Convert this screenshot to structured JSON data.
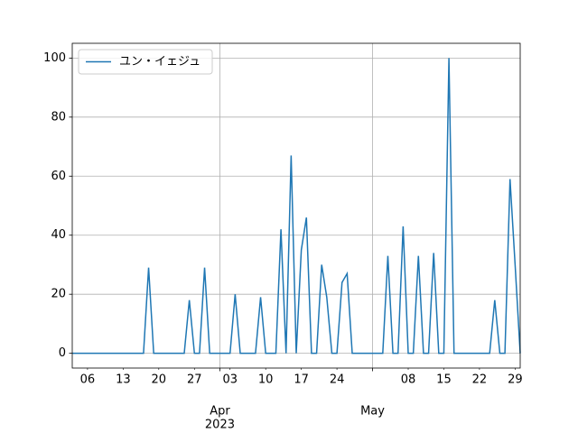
{
  "chart_data": {
    "type": "line",
    "x": [
      "2023-03-03",
      "2023-03-04",
      "2023-03-05",
      "2023-03-06",
      "2023-03-07",
      "2023-03-08",
      "2023-03-09",
      "2023-03-10",
      "2023-03-11",
      "2023-03-12",
      "2023-03-13",
      "2023-03-14",
      "2023-03-15",
      "2023-03-16",
      "2023-03-17",
      "2023-03-18",
      "2023-03-19",
      "2023-03-20",
      "2023-03-21",
      "2023-03-22",
      "2023-03-23",
      "2023-03-24",
      "2023-03-25",
      "2023-03-26",
      "2023-03-27",
      "2023-03-28",
      "2023-03-29",
      "2023-03-30",
      "2023-03-31",
      "2023-04-01",
      "2023-04-02",
      "2023-04-03",
      "2023-04-04",
      "2023-04-05",
      "2023-04-06",
      "2023-04-07",
      "2023-04-08",
      "2023-04-09",
      "2023-04-10",
      "2023-04-11",
      "2023-04-12",
      "2023-04-13",
      "2023-04-14",
      "2023-04-15",
      "2023-04-16",
      "2023-04-17",
      "2023-04-18",
      "2023-04-19",
      "2023-04-20",
      "2023-04-21",
      "2023-04-22",
      "2023-04-23",
      "2023-04-24",
      "2023-04-25",
      "2023-04-26",
      "2023-04-27",
      "2023-04-28",
      "2023-04-29",
      "2023-04-30",
      "2023-05-01",
      "2023-05-02",
      "2023-05-03",
      "2023-05-04",
      "2023-05-05",
      "2023-05-06",
      "2023-05-07",
      "2023-05-08",
      "2023-05-09",
      "2023-05-10",
      "2023-05-11",
      "2023-05-12",
      "2023-05-13",
      "2023-05-14",
      "2023-05-15",
      "2023-05-16",
      "2023-05-17",
      "2023-05-18",
      "2023-05-19",
      "2023-05-20",
      "2023-05-21",
      "2023-05-22",
      "2023-05-23",
      "2023-05-24",
      "2023-05-25",
      "2023-05-26",
      "2023-05-27",
      "2023-05-28",
      "2023-05-29",
      "2023-05-30"
    ],
    "series": [
      {
        "name": "ユン・イェジュ",
        "color": "#1f77b4",
        "values": [
          0,
          0,
          0,
          0,
          0,
          0,
          0,
          0,
          0,
          0,
          0,
          0,
          0,
          0,
          0,
          29,
          0,
          0,
          0,
          0,
          0,
          0,
          0,
          18,
          0,
          0,
          29,
          0,
          0,
          0,
          0,
          0,
          20,
          0,
          0,
          0,
          0,
          19,
          0,
          0,
          0,
          42,
          0,
          67,
          0,
          35,
          46,
          0,
          0,
          30,
          19,
          0,
          0,
          24,
          27,
          0,
          0,
          0,
          0,
          0,
          0,
          0,
          33,
          0,
          0,
          43,
          0,
          0,
          33,
          0,
          0,
          34,
          0,
          0,
          100,
          0,
          0,
          0,
          0,
          0,
          0,
          0,
          0,
          18,
          0,
          0,
          59,
          30,
          0
        ]
      }
    ],
    "xlim": [
      "2023-03-03",
      "2023-05-30"
    ],
    "xticks": [
      {
        "value": "2023-04-01",
        "label": "Apr"
      },
      {
        "value": "2023-05-01",
        "label": "May"
      }
    ],
    "x_year_label": "2023",
    "xticks_minor": [
      {
        "value": "2023-03-06",
        "label": "06"
      },
      {
        "value": "2023-03-13",
        "label": "13"
      },
      {
        "value": "2023-03-20",
        "label": "20"
      },
      {
        "value": "2023-03-27",
        "label": "27"
      },
      {
        "value": "2023-04-03",
        "label": "03"
      },
      {
        "value": "2023-04-10",
        "label": "10"
      },
      {
        "value": "2023-04-17",
        "label": "17"
      },
      {
        "value": "2023-04-24",
        "label": "24"
      },
      {
        "value": "2023-05-08",
        "label": "08"
      },
      {
        "value": "2023-05-15",
        "label": "15"
      },
      {
        "value": "2023-05-22",
        "label": "22"
      },
      {
        "value": "2023-05-29",
        "label": "29"
      }
    ],
    "ylim": [
      -5,
      105
    ],
    "yticks": [
      0,
      20,
      40,
      60,
      80,
      100
    ],
    "grid": true,
    "legend": "upper left"
  }
}
